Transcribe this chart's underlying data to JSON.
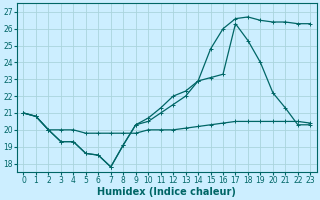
{
  "xlabel": "Humidex (Indice chaleur)",
  "bg_color": "#cceeff",
  "grid_color": "#b0dde8",
  "line_color": "#006666",
  "xlim": [
    -0.5,
    23.5
  ],
  "ylim": [
    17.5,
    27.5
  ],
  "xticks": [
    0,
    1,
    2,
    3,
    4,
    5,
    6,
    7,
    8,
    9,
    10,
    11,
    12,
    13,
    14,
    15,
    16,
    17,
    18,
    19,
    20,
    21,
    22,
    23
  ],
  "yticks": [
    18,
    19,
    20,
    21,
    22,
    23,
    24,
    25,
    26,
    27
  ],
  "line1_x": [
    0,
    1,
    2,
    3,
    4,
    5,
    6,
    7,
    8,
    9,
    10,
    11,
    12,
    13,
    14,
    15,
    16,
    17,
    18,
    19,
    20,
    21,
    22,
    23
  ],
  "line1_y": [
    21.0,
    20.8,
    20.0,
    19.3,
    19.3,
    18.6,
    18.5,
    17.8,
    19.1,
    20.3,
    20.7,
    21.3,
    22.0,
    22.3,
    22.9,
    24.8,
    26.0,
    26.6,
    26.7,
    26.5,
    26.4,
    26.4,
    26.3,
    26.3
  ],
  "line2_x": [
    0,
    1,
    2,
    3,
    4,
    5,
    6,
    7,
    8,
    9,
    10,
    11,
    12,
    13,
    14,
    15,
    16,
    17,
    18,
    19,
    20,
    21,
    22,
    23
  ],
  "line2_y": [
    21.0,
    20.8,
    20.0,
    19.3,
    19.3,
    18.6,
    18.5,
    17.8,
    19.1,
    20.3,
    20.5,
    21.0,
    21.5,
    22.0,
    22.9,
    23.1,
    23.3,
    26.3,
    25.3,
    24.0,
    22.2,
    21.3,
    20.3,
    20.3
  ],
  "line3_x": [
    0,
    1,
    2,
    3,
    4,
    5,
    6,
    7,
    8,
    9,
    10,
    11,
    12,
    13,
    14,
    15,
    16,
    17,
    18,
    19,
    20,
    21,
    22,
    23
  ],
  "line3_y": [
    21.0,
    20.8,
    20.0,
    20.0,
    20.0,
    19.8,
    19.8,
    19.8,
    19.8,
    19.8,
    20.0,
    20.0,
    20.0,
    20.1,
    20.2,
    20.3,
    20.4,
    20.5,
    20.5,
    20.5,
    20.5,
    20.5,
    20.5,
    20.4
  ]
}
